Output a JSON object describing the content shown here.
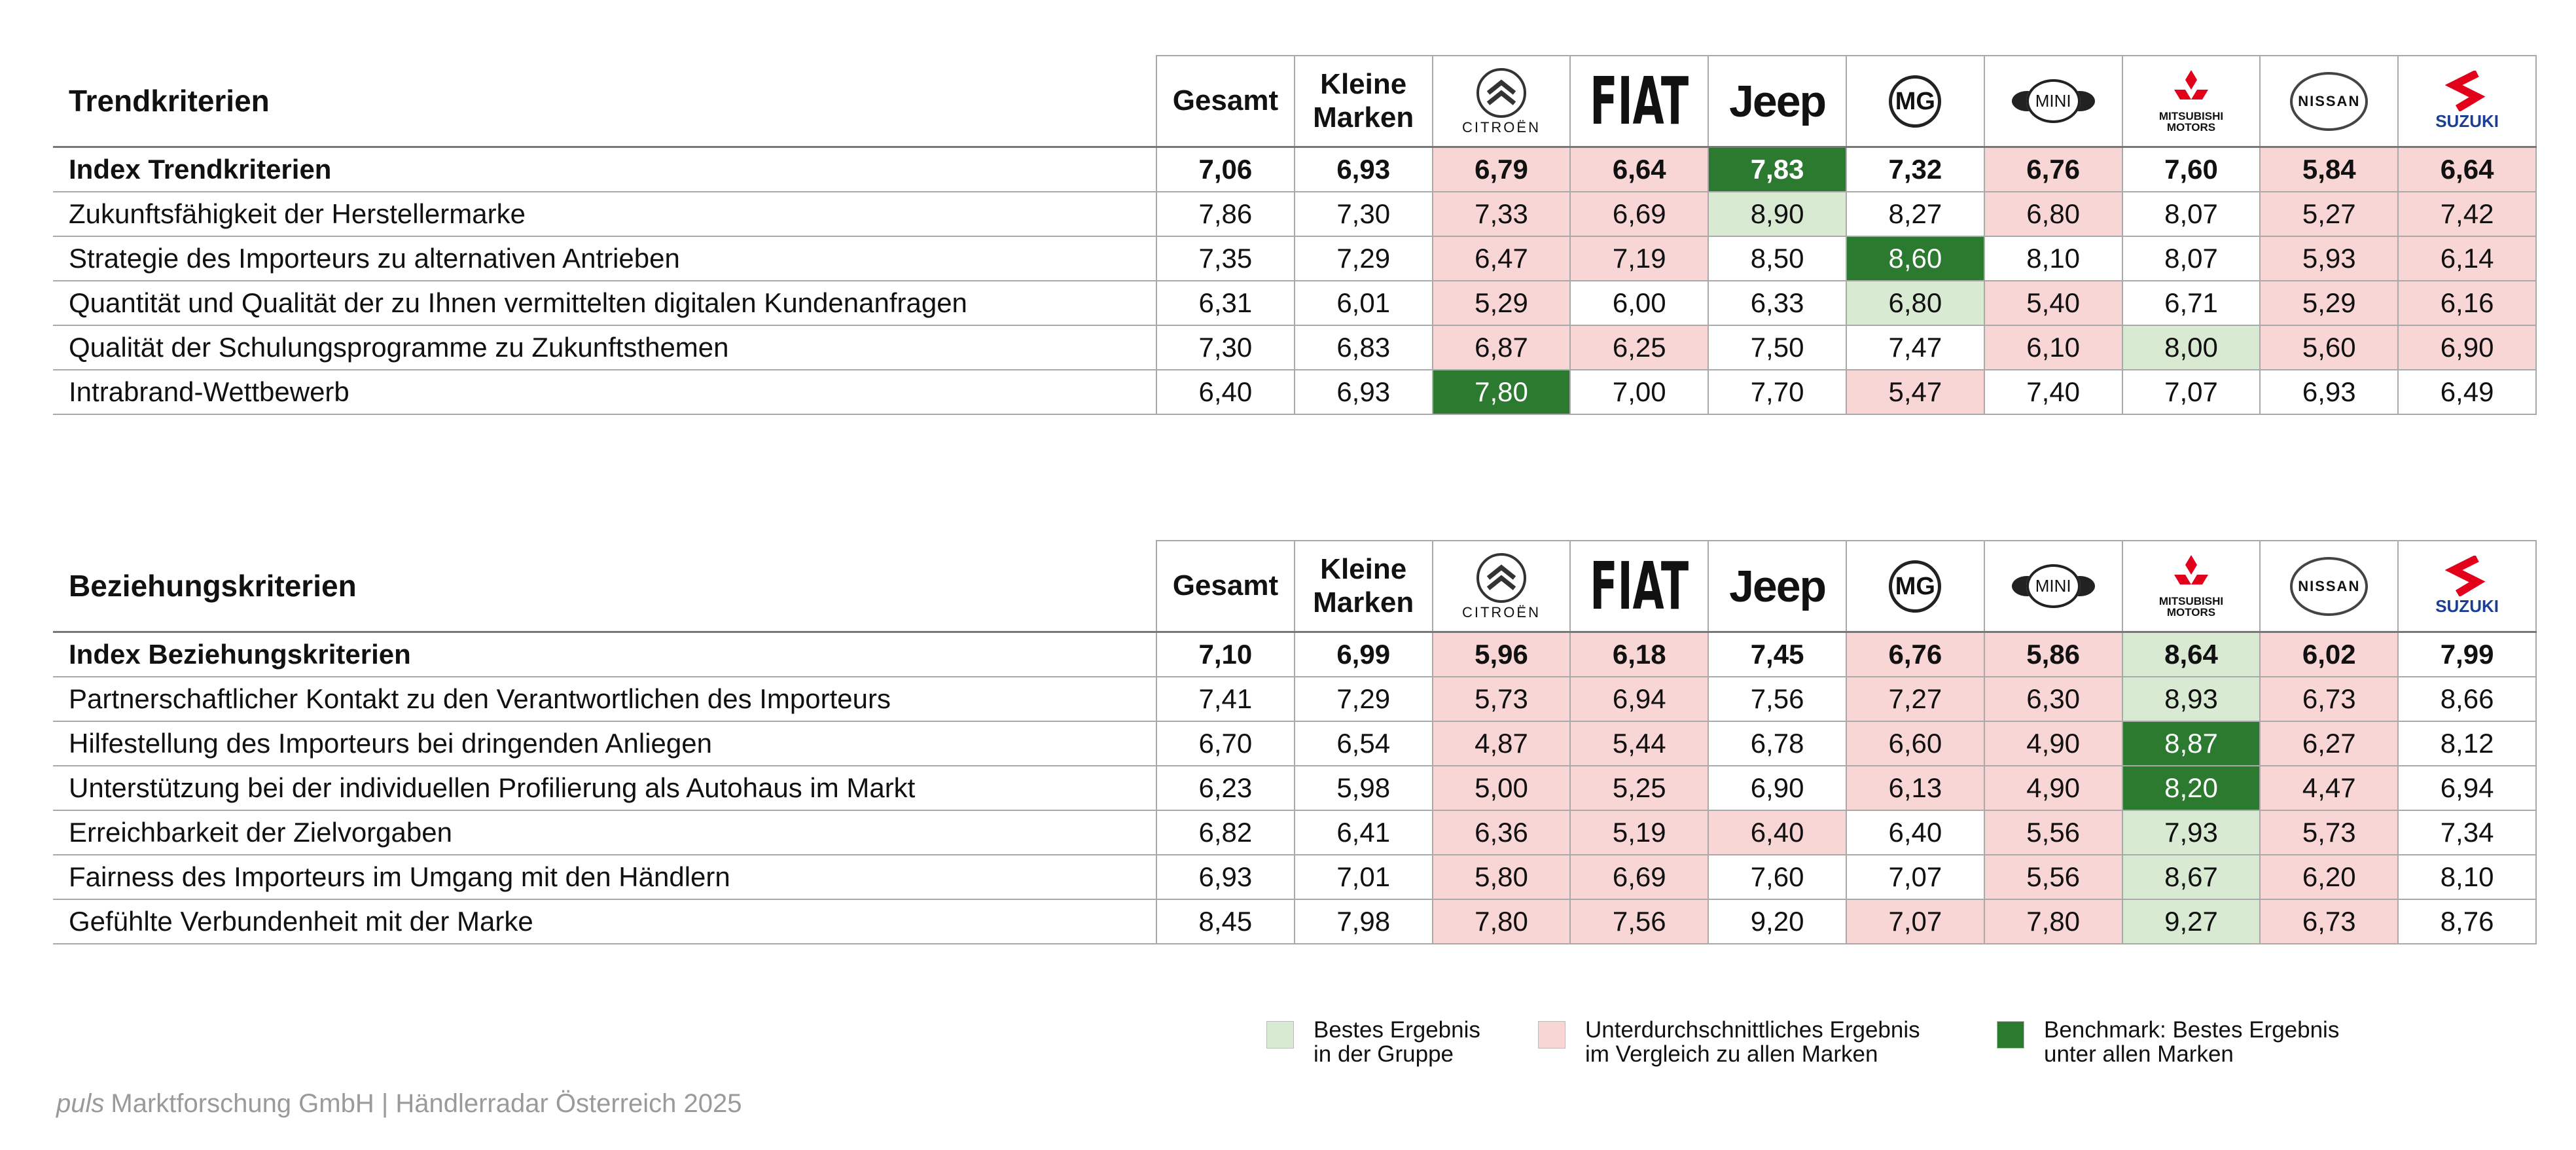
{
  "highlight_colors": {
    "best": "#d9ead3",
    "below": "#f9d6d6",
    "benchmark": "#2b7a2f"
  },
  "tables": [
    {
      "title": "Trendkriterien",
      "columns": [
        "Gesamt",
        "Kleine Marken",
        "CITROËN",
        "FIAT",
        "Jeep",
        "MG",
        "MINI",
        "MITSUBISHI MOTORS",
        "NISSAN",
        "SUZUKI"
      ],
      "rows": [
        {
          "label": "Index Trendkriterien",
          "bold": true,
          "values": [
            "7,06",
            "6,93",
            "6,79",
            "6,64",
            "7,83",
            "7,32",
            "6,76",
            "7,60",
            "5,84",
            "6,64"
          ],
          "highlights": [
            null,
            null,
            "below",
            "below",
            "benchmark",
            null,
            "below",
            null,
            "below",
            "below"
          ]
        },
        {
          "label": "Zukunftsfähigkeit der Herstellermarke",
          "bold": false,
          "values": [
            "7,86",
            "7,30",
            "7,33",
            "6,69",
            "8,90",
            "8,27",
            "6,80",
            "8,07",
            "5,27",
            "7,42"
          ],
          "highlights": [
            null,
            null,
            "below",
            "below",
            "best",
            null,
            "below",
            null,
            "below",
            "below"
          ]
        },
        {
          "label": "Strategie des Importeurs zu alternativen Antrieben",
          "bold": false,
          "values": [
            "7,35",
            "7,29",
            "6,47",
            "7,19",
            "8,50",
            "8,60",
            "8,10",
            "8,07",
            "5,93",
            "6,14"
          ],
          "highlights": [
            null,
            null,
            "below",
            "below",
            null,
            "benchmark",
            null,
            null,
            "below",
            "below"
          ]
        },
        {
          "label": "Quantität und Qualität der zu Ihnen vermittelten digitalen Kundenanfragen",
          "bold": false,
          "values": [
            "6,31",
            "6,01",
            "5,29",
            "6,00",
            "6,33",
            "6,80",
            "5,40",
            "6,71",
            "5,29",
            "6,16"
          ],
          "highlights": [
            null,
            null,
            "below",
            null,
            null,
            "best",
            "below",
            null,
            "below",
            "below"
          ]
        },
        {
          "label": "Qualität der Schulungsprogramme zu Zukunftsthemen",
          "bold": false,
          "values": [
            "7,30",
            "6,83",
            "6,87",
            "6,25",
            "7,50",
            "7,47",
            "6,10",
            "8,00",
            "5,60",
            "6,90"
          ],
          "highlights": [
            null,
            null,
            "below",
            "below",
            null,
            null,
            "below",
            "best",
            "below",
            "below"
          ]
        },
        {
          "label": "Intrabrand-Wettbewerb",
          "bold": false,
          "values": [
            "6,40",
            "6,93",
            "7,80",
            "7,00",
            "7,70",
            "5,47",
            "7,40",
            "7,07",
            "6,93",
            "6,49"
          ],
          "highlights": [
            null,
            null,
            "benchmark",
            null,
            null,
            "below",
            null,
            null,
            null,
            null
          ]
        }
      ]
    },
    {
      "title": "Beziehungskriterien",
      "columns": [
        "Gesamt",
        "Kleine Marken",
        "CITROËN",
        "FIAT",
        "Jeep",
        "MG",
        "MINI",
        "MITSUBISHI MOTORS",
        "NISSAN",
        "SUZUKI"
      ],
      "rows": [
        {
          "label": "Index Beziehungskriterien",
          "bold": true,
          "values": [
            "7,10",
            "6,99",
            "5,96",
            "6,18",
            "7,45",
            "6,76",
            "5,86",
            "8,64",
            "6,02",
            "7,99"
          ],
          "highlights": [
            null,
            null,
            "below",
            "below",
            null,
            "below",
            "below",
            "best",
            "below",
            null
          ]
        },
        {
          "label": "Partnerschaftlicher Kontakt zu den Verantwortlichen des Importeurs",
          "bold": false,
          "values": [
            "7,41",
            "7,29",
            "5,73",
            "6,94",
            "7,56",
            "7,27",
            "6,30",
            "8,93",
            "6,73",
            "8,66"
          ],
          "highlights": [
            null,
            null,
            "below",
            "below",
            null,
            "below",
            "below",
            "best",
            "below",
            null
          ]
        },
        {
          "label": "Hilfestellung des Importeurs bei dringenden Anliegen",
          "bold": false,
          "values": [
            "6,70",
            "6,54",
            "4,87",
            "5,44",
            "6,78",
            "6,60",
            "4,90",
            "8,87",
            "6,27",
            "8,12"
          ],
          "highlights": [
            null,
            null,
            "below",
            "below",
            null,
            "below",
            "below",
            "benchmark",
            "below",
            null
          ]
        },
        {
          "label": "Unterstützung bei der individuellen Profilierung als Autohaus im Markt",
          "bold": false,
          "values": [
            "6,23",
            "5,98",
            "5,00",
            "5,25",
            "6,90",
            "6,13",
            "4,90",
            "8,20",
            "4,47",
            "6,94"
          ],
          "highlights": [
            null,
            null,
            "below",
            "below",
            null,
            "below",
            "below",
            "benchmark",
            "below",
            null
          ]
        },
        {
          "label": "Erreichbarkeit der Zielvorgaben",
          "bold": false,
          "values": [
            "6,82",
            "6,41",
            "6,36",
            "5,19",
            "6,40",
            "6,40",
            "5,56",
            "7,93",
            "5,73",
            "7,34"
          ],
          "highlights": [
            null,
            null,
            "below",
            "below",
            "below",
            null,
            "below",
            "best",
            "below",
            null
          ]
        },
        {
          "label": "Fairness des Importeurs im Umgang mit den Händlern",
          "bold": false,
          "values": [
            "6,93",
            "7,01",
            "5,80",
            "6,69",
            "7,60",
            "7,07",
            "5,56",
            "8,67",
            "6,20",
            "8,10"
          ],
          "highlights": [
            null,
            null,
            "below",
            "below",
            null,
            null,
            "below",
            "best",
            "below",
            null
          ]
        },
        {
          "label": "Gefühlte Verbundenheit mit der Marke",
          "bold": false,
          "values": [
            "8,45",
            "7,98",
            "7,80",
            "7,56",
            "9,20",
            "7,07",
            "7,80",
            "9,27",
            "6,73",
            "8,76"
          ],
          "highlights": [
            null,
            null,
            "below",
            "below",
            null,
            "below",
            "below",
            "best",
            "below",
            null
          ]
        }
      ]
    }
  ],
  "legend": [
    {
      "key": "best",
      "lines": [
        "Bestes Ergebnis",
        "in der Gruppe"
      ]
    },
    {
      "key": "below",
      "lines": [
        "Unterdurchschnittliches Ergebnis",
        "im Vergleich zu allen Marken"
      ]
    },
    {
      "key": "benchmark",
      "lines": [
        "Benchmark: Bestes Ergebnis",
        "unter allen Marken"
      ]
    }
  ],
  "footer": {
    "brand": "puls",
    "text": "Marktforschung GmbH | Händlerradar Österreich 2025"
  }
}
